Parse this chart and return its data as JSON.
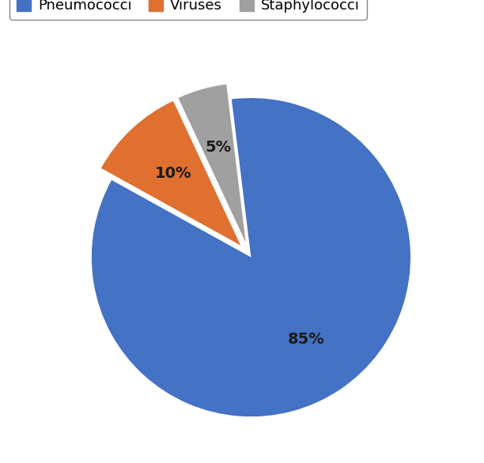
{
  "labels": [
    "Pneumococci",
    "Viruses",
    "Staphylococci"
  ],
  "values": [
    85,
    10,
    5
  ],
  "colors": [
    "#4472C4",
    "#E07030",
    "#A0A0A0"
  ],
  "explode": [
    0.02,
    0.08,
    0.08
  ],
  "startangle": 97,
  "legend_labels": [
    "Pneumococci",
    "Viruses",
    "Staphylococci"
  ],
  "figsize": [
    6.12,
    5.86
  ],
  "dpi": 100,
  "background_color": "#FFFFFF",
  "text_color": "#1a1a1a",
  "label_fontsize": 14,
  "legend_fontsize": 13,
  "pctdistance_pneumo": 0.7,
  "pctdistance_others": 0.55
}
